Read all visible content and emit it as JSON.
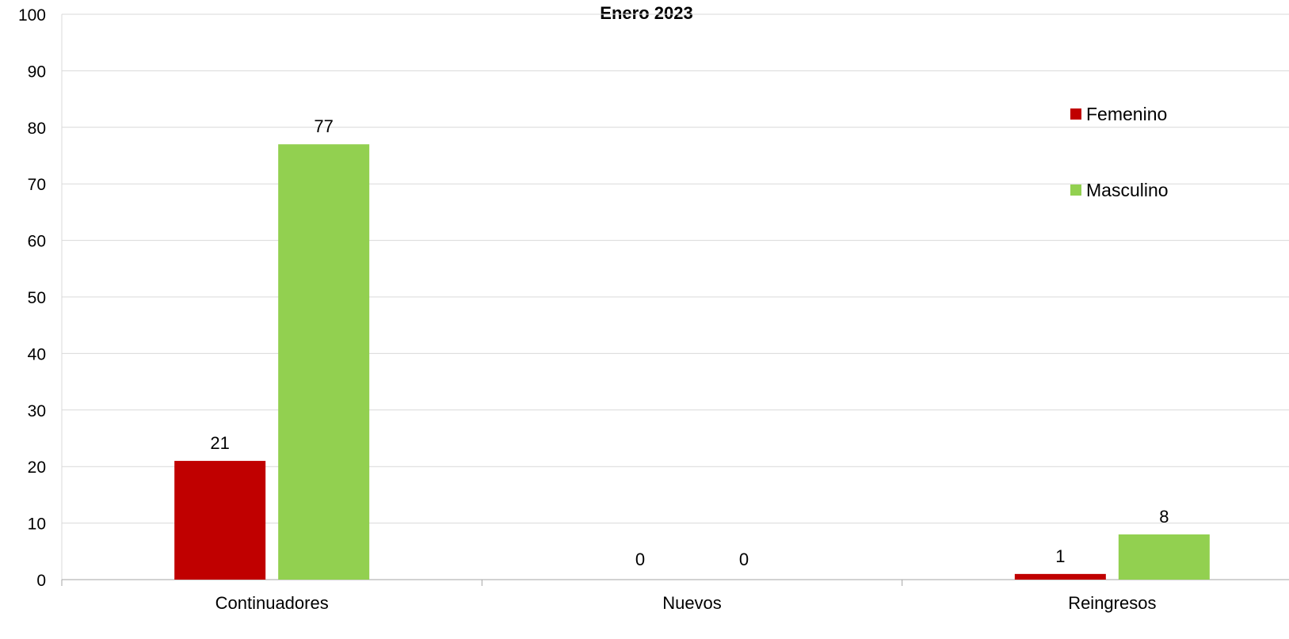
{
  "chart_data": {
    "type": "bar",
    "title": "Enero 2023",
    "categories": [
      "Continuadores",
      "Nuevos",
      "Reingresos"
    ],
    "series": [
      {
        "name": "Femenino",
        "values": [
          21,
          0,
          1
        ],
        "color": "#c00000"
      },
      {
        "name": "Masculino",
        "values": [
          77,
          0,
          8
        ],
        "color": "#92d050"
      }
    ],
    "ylim": [
      0,
      100
    ],
    "yticks": [
      0,
      10,
      20,
      30,
      40,
      50,
      60,
      70,
      80,
      90,
      100
    ],
    "grid": true,
    "legend_position": "right"
  }
}
